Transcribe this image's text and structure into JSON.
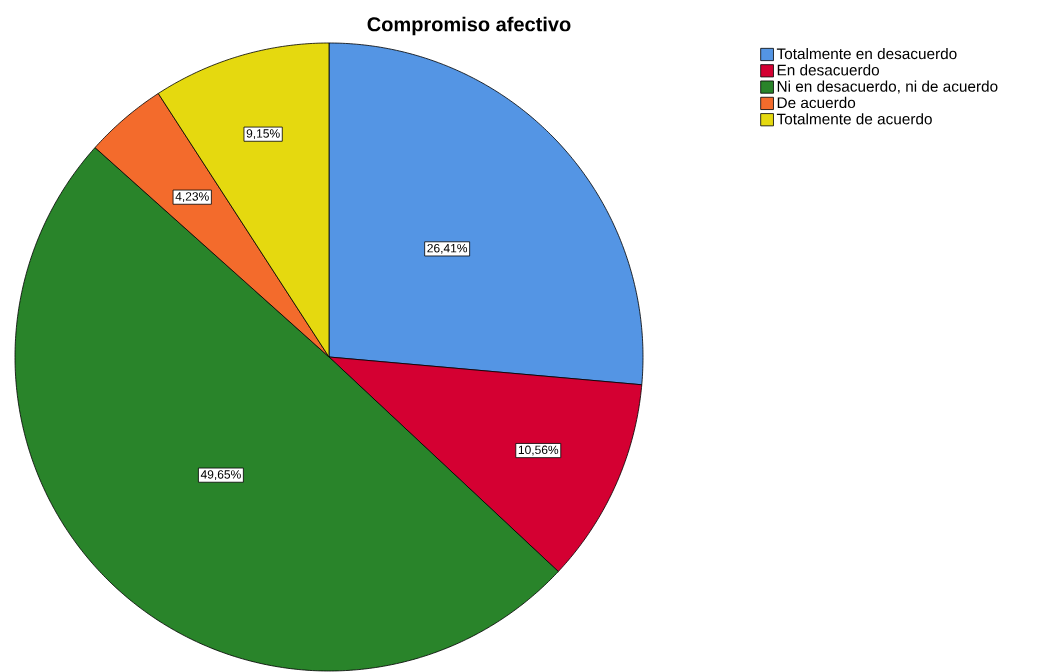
{
  "chart_data": {
    "type": "pie",
    "title": "Compromiso afectivo",
    "categories": [
      "Totalmente en desacuerdo",
      "En desacuerdo",
      "Ni en desacuerdo, ni de acuerdo",
      "De acuerdo",
      "Totalmente de acuerdo"
    ],
    "values": [
      26.41,
      10.56,
      49.65,
      4.23,
      9.15
    ],
    "colors": [
      "#5495e4",
      "#d40032",
      "#29842a",
      "#f36b2c",
      "#e5d90f"
    ],
    "value_labels": [
      "26,41%",
      "10,56%",
      "49,65%",
      "4,23%",
      "9,15%"
    ],
    "legend": "top right"
  }
}
